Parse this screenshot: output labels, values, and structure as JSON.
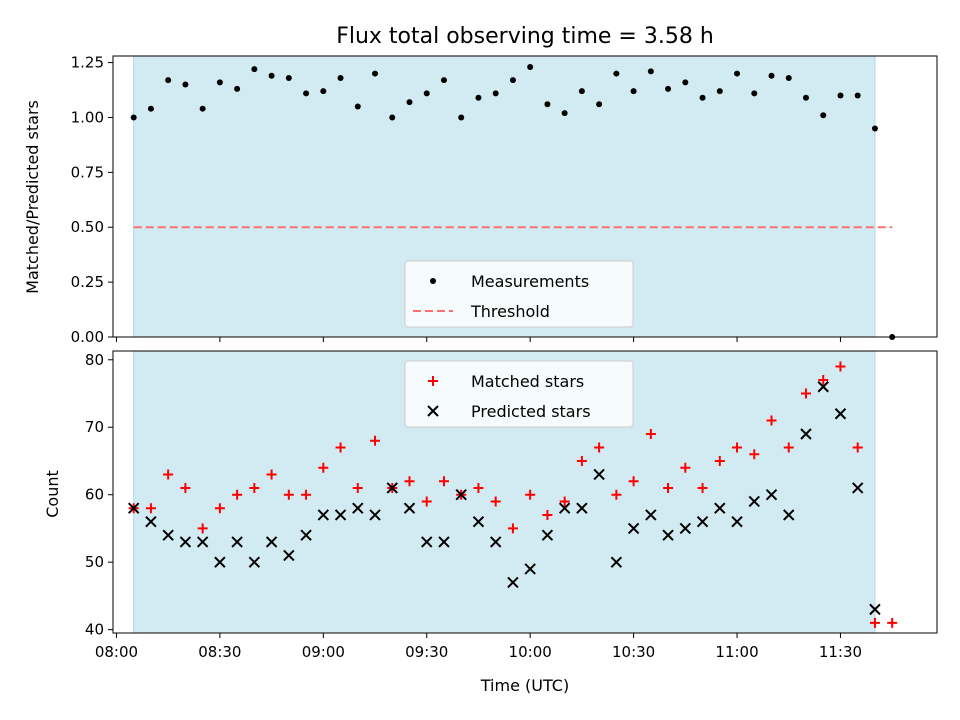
{
  "title": "Flux total observing time = 3.58 h",
  "x_axis_label": "Time (UTC)",
  "x_ticks": [
    "08:00",
    "08:30",
    "09:00",
    "09:30",
    "10:00",
    "10:30",
    "11:00",
    "11:30"
  ],
  "colors": {
    "shaded_region": "#add8e6",
    "measurements": "#000000",
    "threshold": "#ff6f6f",
    "matched": "#ff0000",
    "predicted": "#000000"
  },
  "chart_data": [
    {
      "type": "scatter",
      "panel": "top",
      "ylabel": "Matched/Predicted stars",
      "xlim": [
        "07:59",
        "11:58"
      ],
      "ylim": [
        0,
        1.28
      ],
      "y_ticks": [
        "0.00",
        "0.25",
        "0.50",
        "0.75",
        "1.00",
        "1.25"
      ],
      "shaded_span": [
        "08:05",
        "11:40"
      ],
      "legend": {
        "placement": "lower-center",
        "entries": [
          "Measurements",
          "Threshold"
        ]
      },
      "series": [
        {
          "name": "Measurements",
          "marker": "dot",
          "x": [
            "08:05",
            "08:10",
            "08:15",
            "08:20",
            "08:25",
            "08:30",
            "08:35",
            "08:40",
            "08:45",
            "08:50",
            "08:55",
            "09:00",
            "09:05",
            "09:10",
            "09:15",
            "09:20",
            "09:25",
            "09:30",
            "09:35",
            "09:40",
            "09:45",
            "09:50",
            "09:55",
            "10:00",
            "10:05",
            "10:10",
            "10:15",
            "10:20",
            "10:25",
            "10:30",
            "10:35",
            "10:40",
            "10:45",
            "10:50",
            "10:55",
            "11:00",
            "11:05",
            "11:10",
            "11:15",
            "11:20",
            "11:25",
            "11:30",
            "11:35",
            "11:40",
            "11:45"
          ],
          "y": [
            1.0,
            1.04,
            1.17,
            1.15,
            1.04,
            1.16,
            1.13,
            1.22,
            1.19,
            1.18,
            1.11,
            1.12,
            1.18,
            1.05,
            1.2,
            1.0,
            1.07,
            1.11,
            1.17,
            1.0,
            1.09,
            1.11,
            1.17,
            1.23,
            1.06,
            1.02,
            1.12,
            1.06,
            1.2,
            1.12,
            1.21,
            1.13,
            1.16,
            1.09,
            1.12,
            1.2,
            1.11,
            1.19,
            1.18,
            1.09,
            1.01,
            1.1,
            1.1,
            0.95,
            0.0
          ]
        },
        {
          "name": "Threshold",
          "style": "dashed",
          "x": [
            "08:05",
            "11:45"
          ],
          "y": [
            0.5,
            0.5
          ]
        }
      ]
    },
    {
      "type": "scatter",
      "panel": "bottom",
      "ylabel": "Count",
      "xlim": [
        "07:59",
        "11:58"
      ],
      "ylim": [
        39.5,
        81.3
      ],
      "y_ticks": [
        "40",
        "50",
        "60",
        "70",
        "80"
      ],
      "shaded_span": [
        "08:05",
        "11:40"
      ],
      "legend": {
        "placement": "upper-center",
        "entries": [
          "Matched stars",
          "Predicted stars"
        ]
      },
      "series": [
        {
          "name": "Matched stars",
          "marker": "plus",
          "x": [
            "08:05",
            "08:10",
            "08:15",
            "08:20",
            "08:25",
            "08:30",
            "08:35",
            "08:40",
            "08:45",
            "08:50",
            "08:55",
            "09:00",
            "09:05",
            "09:10",
            "09:15",
            "09:20",
            "09:25",
            "09:30",
            "09:35",
            "09:40",
            "09:45",
            "09:50",
            "09:55",
            "10:00",
            "10:05",
            "10:10",
            "10:15",
            "10:20",
            "10:25",
            "10:30",
            "10:35",
            "10:40",
            "10:45",
            "10:50",
            "10:55",
            "11:00",
            "11:05",
            "11:10",
            "11:15",
            "11:20",
            "11:25",
            "11:30",
            "11:35",
            "11:40",
            "11:45"
          ],
          "y": [
            58,
            58,
            63,
            61,
            55,
            58,
            60,
            61,
            63,
            60,
            60,
            64,
            67,
            61,
            68,
            61,
            62,
            59,
            62,
            60,
            61,
            59,
            55,
            60,
            57,
            59,
            65,
            67,
            60,
            62,
            69,
            61,
            64,
            61,
            65,
            67,
            66,
            71,
            67,
            75,
            77,
            79,
            67,
            41,
            41
          ]
        },
        {
          "name": "Predicted stars",
          "marker": "x",
          "x": [
            "08:05",
            "08:10",
            "08:15",
            "08:20",
            "08:25",
            "08:30",
            "08:35",
            "08:40",
            "08:45",
            "08:50",
            "08:55",
            "09:00",
            "09:05",
            "09:10",
            "09:15",
            "09:20",
            "09:25",
            "09:30",
            "09:35",
            "09:40",
            "09:45",
            "09:50",
            "09:55",
            "10:00",
            "10:05",
            "10:10",
            "10:15",
            "10:20",
            "10:25",
            "10:30",
            "10:35",
            "10:40",
            "10:45",
            "10:50",
            "10:55",
            "11:00",
            "11:05",
            "11:10",
            "11:15",
            "11:20",
            "11:25",
            "11:30",
            "11:35",
            "11:40"
          ],
          "y": [
            58,
            56,
            54,
            53,
            53,
            50,
            53,
            50,
            53,
            51,
            54,
            57,
            57,
            58,
            57,
            61,
            58,
            53,
            53,
            60,
            56,
            53,
            47,
            49,
            54,
            58,
            58,
            63,
            50,
            55,
            57,
            54,
            55,
            56,
            58,
            56,
            59,
            60,
            57,
            69,
            76,
            72,
            61,
            43
          ]
        }
      ]
    }
  ]
}
